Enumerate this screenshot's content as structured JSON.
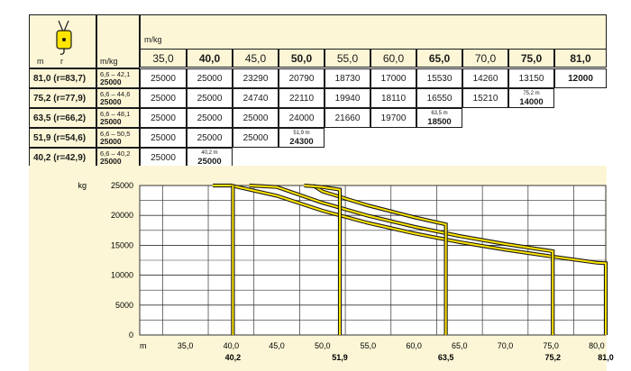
{
  "table": {
    "header_unit": "m/kg",
    "corner_m": "m",
    "corner_r": "r",
    "corner_mkg": "m/kg",
    "columns": [
      "35,0",
      "40,0",
      "45,0",
      "50,0",
      "55,0",
      "60,0",
      "65,0",
      "70,0",
      "75,0",
      "81,0"
    ],
    "bold_columns": [
      1,
      3,
      6,
      8,
      9
    ],
    "rows": [
      {
        "label": "81,0  (r=83,7)",
        "range": "6,6 – 42,1",
        "range_max": "25000",
        "values": [
          "25000",
          "25000",
          "23290",
          "20790",
          "18730",
          "17000",
          "15530",
          "14260",
          "13150",
          "12000"
        ],
        "end": null
      },
      {
        "label": "75,2  (r=77,9)",
        "range": "6,6 – 44,6",
        "range_max": "25000",
        "values": [
          "25000",
          "25000",
          "24740",
          "22110",
          "19940",
          "18110",
          "16550",
          "15210"
        ],
        "end": {
          "dist": "75,2 m",
          "value": "14000"
        }
      },
      {
        "label": "63,5  (r=66,2)",
        "range": "6,6 – 48,1",
        "range_max": "25000",
        "values": [
          "25000",
          "25000",
          "25000",
          "24000",
          "21660",
          "19700"
        ],
        "end": {
          "dist": "63,5 m",
          "value": "18500"
        }
      },
      {
        "label": "51,9  (r=54,6)",
        "range": "6,6 – 50,5",
        "range_max": "25000",
        "values": [
          "25000",
          "25000",
          "25000"
        ],
        "end": {
          "dist": "51,9 m",
          "value": "24300"
        }
      },
      {
        "label": "40,2  (r=42,9)",
        "range": "6,6 – 40,2",
        "range_max": "25000",
        "values": [
          "25000"
        ],
        "end": {
          "dist": "40,2 m",
          "value": "25000"
        }
      }
    ]
  },
  "chart_data": {
    "type": "line",
    "ylabel": "kg",
    "xlabel": "m",
    "xlim": [
      30,
      81
    ],
    "ylim": [
      0,
      25000
    ],
    "y_ticks": [
      "0",
      "5000",
      "10000",
      "15000",
      "20000",
      "25000"
    ],
    "x_ticks": [
      "35,0",
      "40,0",
      "45,0",
      "50,0",
      "55,0",
      "60,0",
      "65,0",
      "70,0",
      "75,0",
      "80,0"
    ],
    "x_tick_values": [
      35,
      40,
      45,
      50,
      55,
      60,
      65,
      70,
      75,
      80
    ],
    "boom_labels": [
      {
        "x": 40.2,
        "text": "40,2"
      },
      {
        "x": 51.9,
        "text": "51,9"
      },
      {
        "x": 63.5,
        "text": "63,5"
      },
      {
        "x": 75.2,
        "text": "75,2"
      },
      {
        "x": 81.0,
        "text": "81,0"
      }
    ],
    "series": [
      {
        "x": [
          38,
          40,
          45,
          50,
          55,
          60,
          65,
          70,
          75,
          80,
          81
        ],
        "y": [
          25000,
          25000,
          23290,
          20790,
          18730,
          17000,
          15530,
          14260,
          13150,
          12100,
          12000
        ],
        "end_x": 81.0
      },
      {
        "x": [
          42,
          45,
          50,
          55,
          60,
          65,
          70,
          75,
          75.2
        ],
        "y": [
          25000,
          24740,
          22110,
          19940,
          18110,
          16550,
          15210,
          14050,
          14000
        ],
        "end_x": 75.2
      },
      {
        "x": [
          49,
          50,
          55,
          60,
          63.5
        ],
        "y": [
          25000,
          24000,
          21660,
          19700,
          18500
        ],
        "end_x": 63.5
      },
      {
        "x": [
          48,
          50,
          51.9
        ],
        "y": [
          25000,
          24750,
          24300
        ],
        "end_x": 51.9
      },
      {
        "x": [
          40.2
        ],
        "y": [
          25000
        ],
        "end_x": 40.2
      }
    ],
    "colors": {
      "curve_fill": "#ffe500",
      "curve_edge": "#1a1a1a",
      "grid": "#333333"
    }
  }
}
